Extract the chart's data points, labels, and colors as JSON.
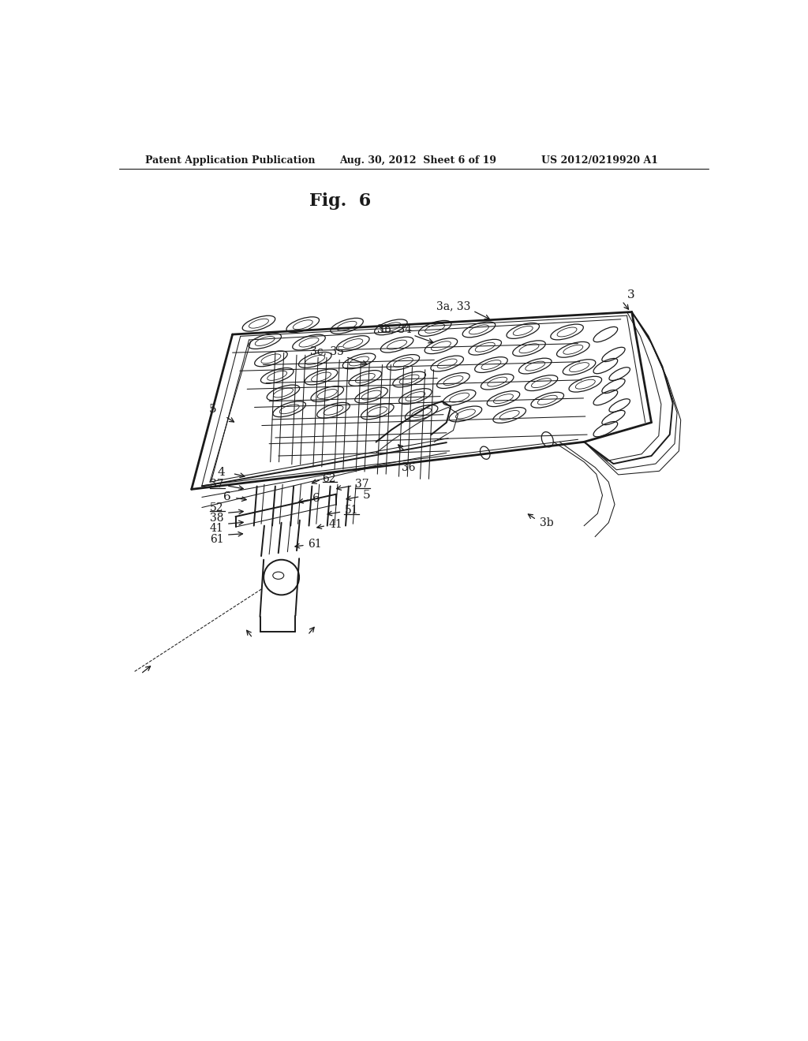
{
  "bg_color": "#ffffff",
  "line_color": "#1a1a1a",
  "header_left": "Patent Application Publication",
  "header_center": "Aug. 30, 2012  Sheet 6 of 19",
  "header_right": "US 2012/0219920 A1",
  "fig_title": "Fig.  6",
  "lw_main": 1.4,
  "lw_thin": 0.75,
  "lw_thick": 2.0,
  "label_fontsize": 11,
  "header_fontsize": 9,
  "title_fontsize": 16
}
